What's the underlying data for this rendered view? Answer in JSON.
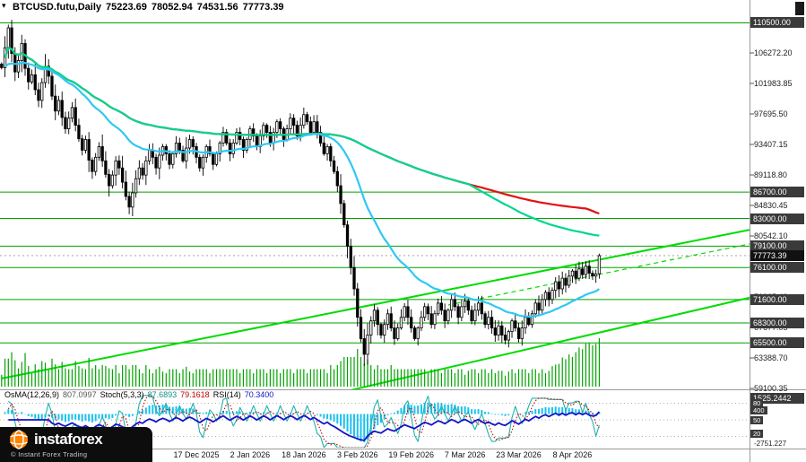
{
  "titlebar": {
    "symbol_period": "BTCUSD.futu,Daily",
    "open": "75223.69",
    "high": "78052.94",
    "low": "74531.56",
    "close": "77773.39"
  },
  "watermark": {
    "brand": "instaforex",
    "copyright": "© Instant Forex Trading"
  },
  "chart_data": {
    "type": "candlestick",
    "symbol": "BTCUSD.futu",
    "timeframe": "Daily",
    "ylim": [
      59100.35,
      113700
    ],
    "last_candle": {
      "open": 75223.69,
      "high": 78052.94,
      "low": 74531.56,
      "close": 77773.39
    },
    "current_price": 77773.39,
    "closes": [
      104200,
      107000,
      109800,
      106200,
      103600,
      105200,
      107600,
      104100,
      102200,
      103200,
      101100,
      99600,
      102100,
      104400,
      103000,
      100200,
      98100,
      99600,
      97200,
      95600,
      97100,
      98600,
      96100,
      94200,
      92600,
      94100,
      91200,
      89600,
      91600,
      93100,
      91100,
      89200,
      87600,
      89100,
      91100,
      90100,
      88100,
      86100,
      84600,
      86600,
      88600,
      90100,
      89100,
      91100,
      92600,
      91600,
      90100,
      91900,
      93100,
      92100,
      90600,
      92100,
      93600,
      92600,
      91100,
      92900,
      94100,
      93100,
      91600,
      90100,
      91600,
      93100,
      92100,
      90600,
      92100,
      93600,
      95100,
      93600,
      92100,
      93600,
      95100,
      94100,
      92600,
      94100,
      95600,
      94600,
      93100,
      94600,
      96100,
      95100,
      93600,
      95100,
      96600,
      95600,
      94100,
      95600,
      97100,
      96100,
      94600,
      96100,
      97600,
      96600,
      95100,
      96600,
      95100,
      93600,
      92100,
      93100,
      91100,
      89600,
      87600,
      85100,
      82100,
      79100,
      76100,
      73100,
      69100,
      66100,
      63900,
      66600,
      68600,
      70100,
      68100,
      66600,
      68100,
      69600,
      67600,
      66100,
      67600,
      69100,
      70600,
      69100,
      67600,
      66100,
      67600,
      69100,
      70600,
      69600,
      68100,
      69600,
      71100,
      70100,
      68600,
      70100,
      71600,
      70600,
      69100,
      70600,
      71400,
      70100,
      68600,
      70100,
      71100,
      69600,
      68100,
      69100,
      67600,
      66600,
      67900,
      66600,
      65900,
      67100,
      68600,
      67600,
      66100,
      67600,
      69100,
      68100,
      69600,
      71100,
      70100,
      71600,
      72600,
      71600,
      72900,
      74100,
      73100,
      74600,
      73600,
      74900,
      75600,
      74600,
      75900,
      75100,
      76300,
      75300,
      74900,
      75200,
      77773.39
    ],
    "price_ticks": [
      "106272.20",
      "101983.85",
      "97695.50",
      "93407.15",
      "89118.80",
      "84830.45",
      "80542.10",
      "76253.75",
      "71965.40",
      "67677.05",
      "63388.70",
      "59100.35"
    ],
    "level_boxes": [
      "110500.00",
      "86700.00",
      "83000.00",
      "79100.00",
      "76100.00",
      "71600.00",
      "68300.00",
      "65500.00"
    ],
    "time_ticks": [
      {
        "label": "17 Dec 2025",
        "index": 58
      },
      {
        "label": "2 Jan 2026",
        "index": 74
      },
      {
        "label": "18 Jan 2026",
        "index": 90
      },
      {
        "label": "3 Feb 2026",
        "index": 106
      },
      {
        "label": "19 Feb 2026",
        "index": 122
      },
      {
        "label": "7 Mar 2026",
        "index": 138
      },
      {
        "label": "23 Mar 2026",
        "index": 154
      },
      {
        "label": "8 Apr 2026",
        "index": 170
      }
    ],
    "trendlines": [
      {
        "name": "support-trendline-long",
        "i1": 0,
        "p1": 60500,
        "i2": 170,
        "p2": 76450,
        "style": "solid",
        "width": 2
      },
      {
        "name": "support-trendline-lower",
        "i1": 37,
        "p1": 51530,
        "i2": 154,
        "p2": 64330,
        "style": "solid",
        "width": 2
      },
      {
        "name": "channel-line-dashed",
        "i1": 133,
        "p1": 70830,
        "i2": 170,
        "p2": 74370,
        "style": "dashed",
        "width": 1.2
      }
    ],
    "moving_averages": [
      {
        "name": "ma-slow-red",
        "type": "sma",
        "period": 175,
        "color": "#e31212"
      },
      {
        "name": "ma-mid-green",
        "type": "sma",
        "period": 140,
        "color": "#00d68f"
      },
      {
        "name": "ma-fast-cyan",
        "type": "ema",
        "period": 32,
        "color": "#2fc8f5"
      }
    ],
    "oscillators": {
      "osma": {
        "label": "OsMA(12,26,9)",
        "value": "807.0997"
      },
      "stoch": {
        "label": "Stoch(5,3,3)",
        "k": "87.6893",
        "d": "79.1618"
      },
      "rsi": {
        "label": "RSI(14)",
        "value": "70.3400"
      },
      "axis": {
        "max_box": "1525.2442",
        "level_boxes": [
          "80",
          "400",
          "50",
          "20"
        ],
        "min_label": "-2751.227"
      }
    },
    "colors": {
      "trend": "#00dc00",
      "levels": "#00a000",
      "volume": "#00a300",
      "osma": "#19c2f0",
      "rsi_line": "#1414c8",
      "stoch_k": "#20b2aa",
      "stoch_d": "#d00000",
      "candle": "#000000",
      "box_bg": "#3a3a3a"
    }
  }
}
